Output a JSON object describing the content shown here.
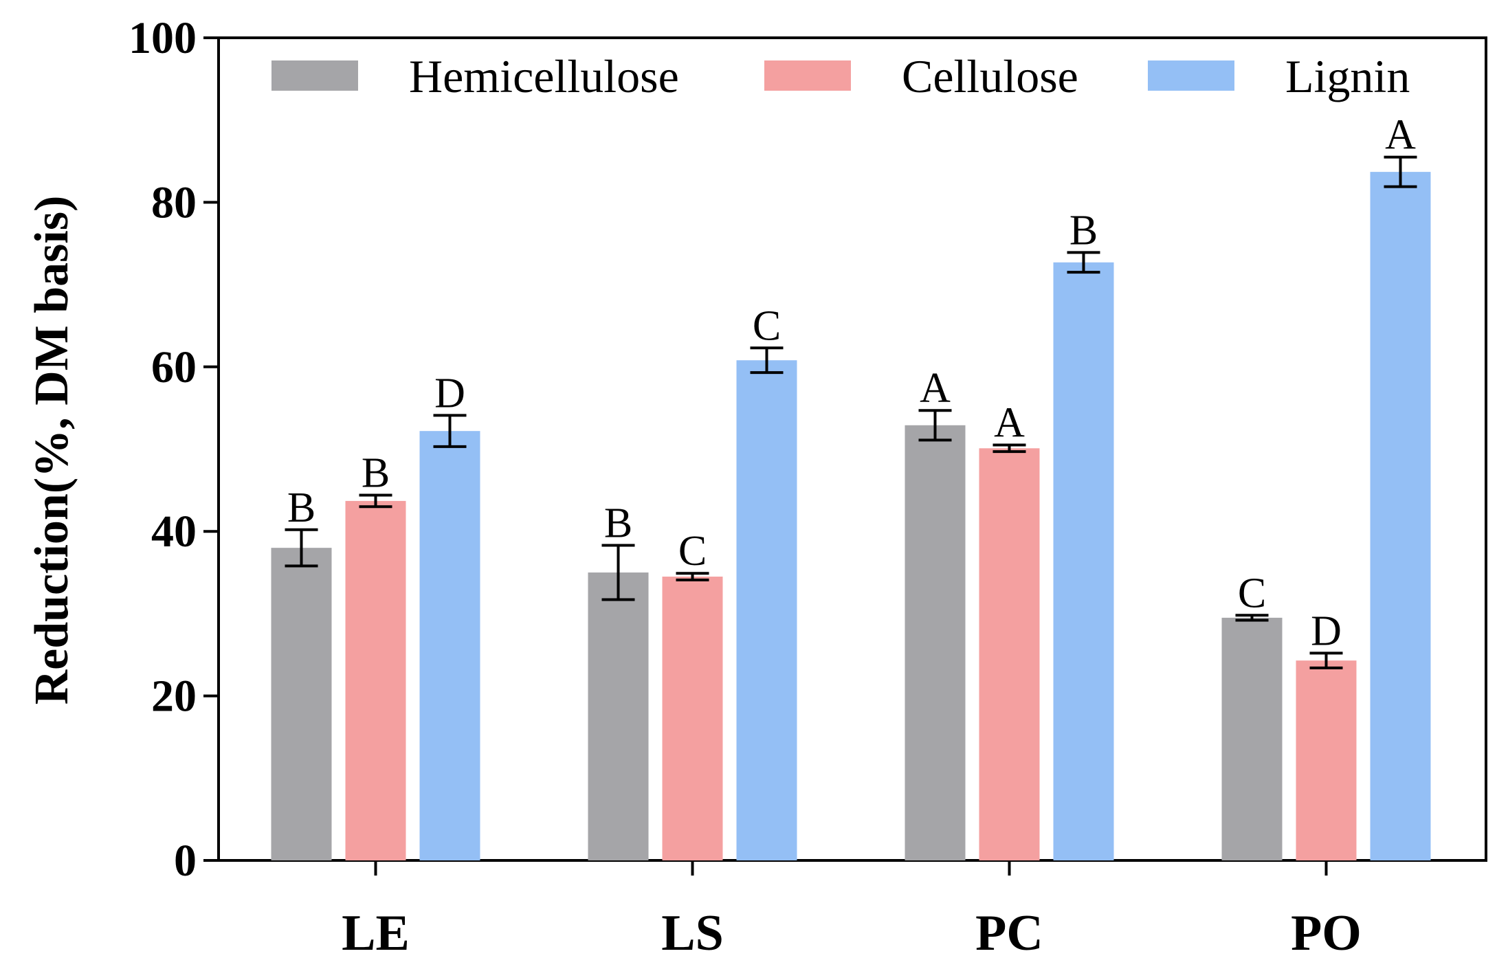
{
  "chart_data": {
    "type": "bar",
    "title": "",
    "xlabel": "",
    "ylabel": "Reduction(%, DM basis)",
    "ylim": [
      0,
      100
    ],
    "yticks": [
      0,
      20,
      40,
      60,
      80,
      100
    ],
    "grid": false,
    "legend_position": "top",
    "categories": [
      "LE",
      "LS",
      "PC",
      "PO"
    ],
    "series": [
      {
        "name": "Hemicellulose",
        "color": "#a5a5a8",
        "values": [
          38.0,
          35.0,
          52.9,
          29.5
        ],
        "errors": [
          2.2,
          3.3,
          1.8,
          0.3
        ],
        "labels": [
          "B",
          "B",
          "A",
          "C"
        ]
      },
      {
        "name": "Cellulose",
        "color": "#f4a0a0",
        "values": [
          43.7,
          34.5,
          50.1,
          24.3
        ],
        "errors": [
          0.7,
          0.4,
          0.4,
          0.9
        ],
        "labels": [
          "B",
          "C",
          "A",
          "D"
        ]
      },
      {
        "name": "Lignin",
        "color": "#94bff5",
        "values": [
          52.2,
          60.8,
          72.7,
          83.7
        ],
        "errors": [
          1.9,
          1.5,
          1.2,
          1.8
        ],
        "labels": [
          "D",
          "C",
          "B",
          "A"
        ]
      }
    ]
  }
}
